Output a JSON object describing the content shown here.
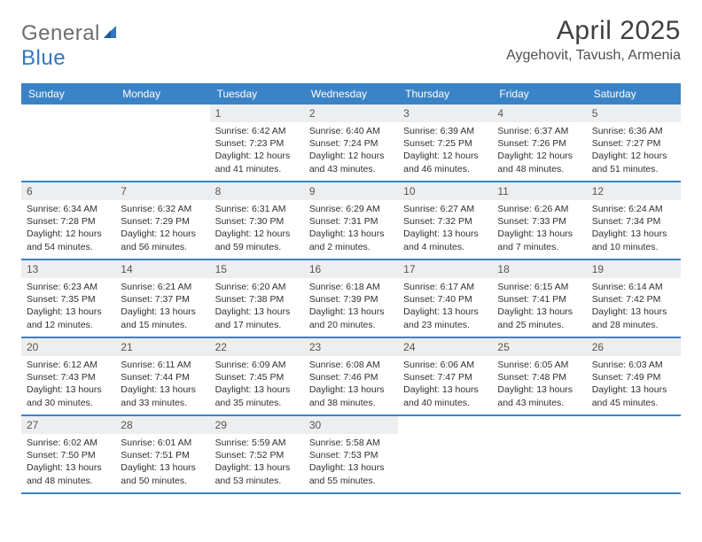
{
  "logo": {
    "word1": "General",
    "word2": "Blue"
  },
  "title": "April 2025",
  "location": "Aygehovit, Tavush, Armenia",
  "colors": {
    "header_bg": "#3b83c7",
    "header_text": "#ffffff",
    "daynum_bg": "#eceef0",
    "week_border": "#3b83c7",
    "logo_gray": "#6d6d6d",
    "logo_blue": "#2f78c2"
  },
  "typography": {
    "title_fontsize": 30,
    "location_fontsize": 16,
    "weekday_fontsize": 12,
    "daynum_fontsize": 12,
    "body_fontsize": 10.5
  },
  "layout": {
    "columns": 7,
    "cell_min_height": 86
  },
  "weekdays": [
    "Sunday",
    "Monday",
    "Tuesday",
    "Wednesday",
    "Thursday",
    "Friday",
    "Saturday"
  ],
  "weeks": [
    [
      {
        "n": "",
        "sr": "",
        "ss": "",
        "dl": ""
      },
      {
        "n": "",
        "sr": "",
        "ss": "",
        "dl": ""
      },
      {
        "n": "1",
        "sr": "Sunrise: 6:42 AM",
        "ss": "Sunset: 7:23 PM",
        "dl": "Daylight: 12 hours and 41 minutes."
      },
      {
        "n": "2",
        "sr": "Sunrise: 6:40 AM",
        "ss": "Sunset: 7:24 PM",
        "dl": "Daylight: 12 hours and 43 minutes."
      },
      {
        "n": "3",
        "sr": "Sunrise: 6:39 AM",
        "ss": "Sunset: 7:25 PM",
        "dl": "Daylight: 12 hours and 46 minutes."
      },
      {
        "n": "4",
        "sr": "Sunrise: 6:37 AM",
        "ss": "Sunset: 7:26 PM",
        "dl": "Daylight: 12 hours and 48 minutes."
      },
      {
        "n": "5",
        "sr": "Sunrise: 6:36 AM",
        "ss": "Sunset: 7:27 PM",
        "dl": "Daylight: 12 hours and 51 minutes."
      }
    ],
    [
      {
        "n": "6",
        "sr": "Sunrise: 6:34 AM",
        "ss": "Sunset: 7:28 PM",
        "dl": "Daylight: 12 hours and 54 minutes."
      },
      {
        "n": "7",
        "sr": "Sunrise: 6:32 AM",
        "ss": "Sunset: 7:29 PM",
        "dl": "Daylight: 12 hours and 56 minutes."
      },
      {
        "n": "8",
        "sr": "Sunrise: 6:31 AM",
        "ss": "Sunset: 7:30 PM",
        "dl": "Daylight: 12 hours and 59 minutes."
      },
      {
        "n": "9",
        "sr": "Sunrise: 6:29 AM",
        "ss": "Sunset: 7:31 PM",
        "dl": "Daylight: 13 hours and 2 minutes."
      },
      {
        "n": "10",
        "sr": "Sunrise: 6:27 AM",
        "ss": "Sunset: 7:32 PM",
        "dl": "Daylight: 13 hours and 4 minutes."
      },
      {
        "n": "11",
        "sr": "Sunrise: 6:26 AM",
        "ss": "Sunset: 7:33 PM",
        "dl": "Daylight: 13 hours and 7 minutes."
      },
      {
        "n": "12",
        "sr": "Sunrise: 6:24 AM",
        "ss": "Sunset: 7:34 PM",
        "dl": "Daylight: 13 hours and 10 minutes."
      }
    ],
    [
      {
        "n": "13",
        "sr": "Sunrise: 6:23 AM",
        "ss": "Sunset: 7:35 PM",
        "dl": "Daylight: 13 hours and 12 minutes."
      },
      {
        "n": "14",
        "sr": "Sunrise: 6:21 AM",
        "ss": "Sunset: 7:37 PM",
        "dl": "Daylight: 13 hours and 15 minutes."
      },
      {
        "n": "15",
        "sr": "Sunrise: 6:20 AM",
        "ss": "Sunset: 7:38 PM",
        "dl": "Daylight: 13 hours and 17 minutes."
      },
      {
        "n": "16",
        "sr": "Sunrise: 6:18 AM",
        "ss": "Sunset: 7:39 PM",
        "dl": "Daylight: 13 hours and 20 minutes."
      },
      {
        "n": "17",
        "sr": "Sunrise: 6:17 AM",
        "ss": "Sunset: 7:40 PM",
        "dl": "Daylight: 13 hours and 23 minutes."
      },
      {
        "n": "18",
        "sr": "Sunrise: 6:15 AM",
        "ss": "Sunset: 7:41 PM",
        "dl": "Daylight: 13 hours and 25 minutes."
      },
      {
        "n": "19",
        "sr": "Sunrise: 6:14 AM",
        "ss": "Sunset: 7:42 PM",
        "dl": "Daylight: 13 hours and 28 minutes."
      }
    ],
    [
      {
        "n": "20",
        "sr": "Sunrise: 6:12 AM",
        "ss": "Sunset: 7:43 PM",
        "dl": "Daylight: 13 hours and 30 minutes."
      },
      {
        "n": "21",
        "sr": "Sunrise: 6:11 AM",
        "ss": "Sunset: 7:44 PM",
        "dl": "Daylight: 13 hours and 33 minutes."
      },
      {
        "n": "22",
        "sr": "Sunrise: 6:09 AM",
        "ss": "Sunset: 7:45 PM",
        "dl": "Daylight: 13 hours and 35 minutes."
      },
      {
        "n": "23",
        "sr": "Sunrise: 6:08 AM",
        "ss": "Sunset: 7:46 PM",
        "dl": "Daylight: 13 hours and 38 minutes."
      },
      {
        "n": "24",
        "sr": "Sunrise: 6:06 AM",
        "ss": "Sunset: 7:47 PM",
        "dl": "Daylight: 13 hours and 40 minutes."
      },
      {
        "n": "25",
        "sr": "Sunrise: 6:05 AM",
        "ss": "Sunset: 7:48 PM",
        "dl": "Daylight: 13 hours and 43 minutes."
      },
      {
        "n": "26",
        "sr": "Sunrise: 6:03 AM",
        "ss": "Sunset: 7:49 PM",
        "dl": "Daylight: 13 hours and 45 minutes."
      }
    ],
    [
      {
        "n": "27",
        "sr": "Sunrise: 6:02 AM",
        "ss": "Sunset: 7:50 PM",
        "dl": "Daylight: 13 hours and 48 minutes."
      },
      {
        "n": "28",
        "sr": "Sunrise: 6:01 AM",
        "ss": "Sunset: 7:51 PM",
        "dl": "Daylight: 13 hours and 50 minutes."
      },
      {
        "n": "29",
        "sr": "Sunrise: 5:59 AM",
        "ss": "Sunset: 7:52 PM",
        "dl": "Daylight: 13 hours and 53 minutes."
      },
      {
        "n": "30",
        "sr": "Sunrise: 5:58 AM",
        "ss": "Sunset: 7:53 PM",
        "dl": "Daylight: 13 hours and 55 minutes."
      },
      {
        "n": "",
        "sr": "",
        "ss": "",
        "dl": ""
      },
      {
        "n": "",
        "sr": "",
        "ss": "",
        "dl": ""
      },
      {
        "n": "",
        "sr": "",
        "ss": "",
        "dl": ""
      }
    ]
  ]
}
